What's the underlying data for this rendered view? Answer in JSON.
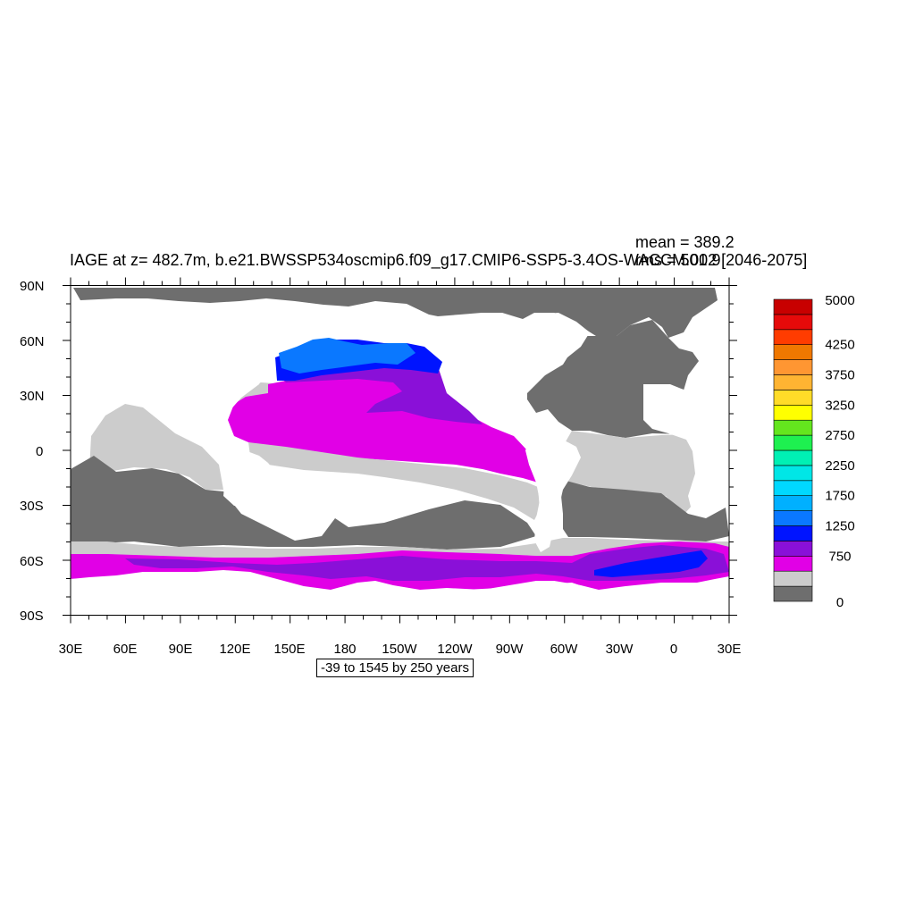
{
  "figure": {
    "title": "IAGE at z= 482.7m, b.e21.BWSSP534oscmip6.f09_g17.CMIP6-SSP5-3.4OS-WACCM.002 [2046-2075]",
    "mean_label": "mean = 389.2",
    "rms_label": "rms = 501.9",
    "range_label": "-39 to 1545 by 250 years"
  },
  "axes": {
    "y_ticks": [
      "90N",
      "60N",
      "30N",
      "0",
      "30S",
      "60S",
      "90S"
    ],
    "x_ticks": [
      "30E",
      "60E",
      "90E",
      "120E",
      "150E",
      "180",
      "150W",
      "120W",
      "90W",
      "60W",
      "30W",
      "0",
      "30E"
    ]
  },
  "colorbar": {
    "colors": [
      "#6e6e6e",
      "#cccccc",
      "#e100e6",
      "#8a10d8",
      "#0014ff",
      "#0a78ff",
      "#00b0ff",
      "#00d8ff",
      "#00e6e6",
      "#00f0b4",
      "#1ef050",
      "#64e61e",
      "#ffff00",
      "#ffdc28",
      "#ffb432",
      "#ff9632",
      "#f07800",
      "#ff3c00",
      "#e60a0a",
      "#c80000"
    ],
    "labels": [
      {
        "text": "0",
        "level": 0
      },
      {
        "text": "750",
        "level": 3
      },
      {
        "text": "1250",
        "level": 5
      },
      {
        "text": "1750",
        "level": 7
      },
      {
        "text": "2250",
        "level": 9
      },
      {
        "text": "2750",
        "level": 11
      },
      {
        "text": "3250",
        "level": 13
      },
      {
        "text": "3750",
        "level": 15
      },
      {
        "text": "4250",
        "level": 17
      },
      {
        "text": "5000",
        "level": 20
      }
    ]
  },
  "map_colors": {
    "land": "#ffffff",
    "age_0_250": "#6e6e6e",
    "age_250_500": "#cccccc",
    "age_500_750": "#e100e6",
    "age_750_1000": "#8a10d8",
    "age_1000_1250": "#0014ff",
    "age_1250_1500": "#0a78ff"
  }
}
